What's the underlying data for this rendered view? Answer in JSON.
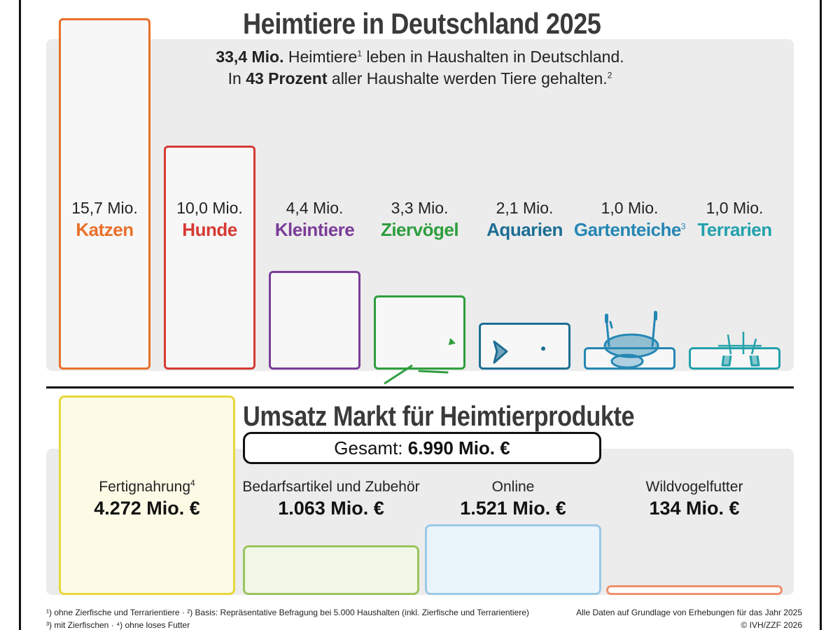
{
  "title": "Heimtiere in Deutschland 2025",
  "subtitle": {
    "line1_bold": "33,4 Mio.",
    "line1_text": " Heimtiere",
    "line1_sup": "1",
    "line1_rest": " leben in Haushalten in Deutschland.",
    "line2_pre": "In ",
    "line2_bold": "43 Prozent",
    "line2_text": " aller Haushalte werden Tiere gehalten.",
    "line2_sup": "2"
  },
  "chart_data": [
    {
      "type": "bar",
      "title": "Heimtiere in Deutschland 2025",
      "unit": "Mio.",
      "categories": [
        "Katzen",
        "Hunde",
        "Kleintiere",
        "Ziervögel",
        "Aquarien",
        "Gartenteiche",
        "Terrarien"
      ],
      "values": [
        15.7,
        10.0,
        4.4,
        3.3,
        2.1,
        1.0,
        1.0
      ],
      "value_labels": [
        "15,7 Mio.",
        "10,0 Mio.",
        "4,4 Mio.",
        "3,3 Mio.",
        "2,1 Mio.",
        "1,0 Mio.",
        "1,0 Mio."
      ],
      "category_sup": [
        "",
        "",
        "",
        "",
        "",
        "3",
        ""
      ],
      "colors": [
        "#e8702a",
        "#d63a34",
        "#7a3d98",
        "#2e9e3e",
        "#1d6e94",
        "#2587b4",
        "#22a1ab"
      ],
      "icons": [
        "cat-icon",
        "dog-icon",
        "rabbit-icon",
        "parrot-icon",
        "fish-icon",
        "pond-icon",
        "turtle-icon"
      ]
    },
    {
      "type": "bar",
      "title": "Umsatz Markt für Heimtierprodukte",
      "total_label": "Gesamt:",
      "total_value": "6.990 Mio. €",
      "categories": [
        "Fertignahrung",
        "Bedarfsartikel und Zubehör",
        "Online",
        "Wildvogelfutter"
      ],
      "category_sup": [
        "4",
        "",
        "",
        ""
      ],
      "values": [
        4272,
        1063,
        1521,
        134
      ],
      "value_labels": [
        "4.272 Mio. €",
        "1.063 Mio. €",
        "1.521 Mio. €",
        "134 Mio. €"
      ],
      "colors": [
        "#e6d83a",
        "#9cc45e",
        "#9cc9e6",
        "#ef8f6e"
      ],
      "fills": [
        "#fdfbe6",
        "#f1f7e6",
        "#eaf4fb",
        "#ffffff"
      ]
    }
  ],
  "footnotes": {
    "left1": "¹) ohne Zierfische und Terrarientiere · ²) Basis: Repräsentative Befragung bei 5.000 Haushalten (inkl. Zierfische und Terrarientiere)",
    "left2": "³) mit Zierfischen · ⁴) ohne loses Futter",
    "right1": "Alle Daten auf Grundlage von Erhebungen für das Jahr 2025",
    "right2": "© IVH/ZZF 2026"
  }
}
